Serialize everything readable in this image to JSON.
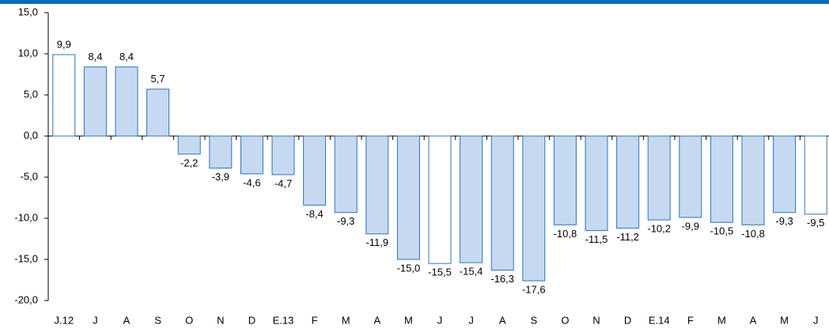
{
  "chart_data": {
    "type": "bar",
    "categories": [
      "J.12",
      "J",
      "A",
      "S",
      "O",
      "N",
      "D",
      "E.13",
      "F",
      "M",
      "A",
      "M",
      "J",
      "J",
      "A",
      "S",
      "O",
      "N",
      "D",
      "E.14",
      "F",
      "M",
      "A",
      "M",
      "J"
    ],
    "values": [
      9.9,
      8.4,
      8.4,
      5.7,
      -2.2,
      -3.9,
      -4.6,
      -4.7,
      -8.4,
      -9.3,
      -11.9,
      -15.0,
      -15.5,
      -15.4,
      -16.3,
      -17.6,
      -10.8,
      -11.5,
      -11.2,
      -10.2,
      -9.9,
      -10.5,
      -10.8,
      -9.3,
      -9.5
    ],
    "value_labels": [
      "9,9",
      "8,4",
      "8,4",
      "5,7",
      "-2,2",
      "-3,9",
      "-4,6",
      "-4,7",
      "-8,4",
      "-9,3",
      "-11,9",
      "-15,0",
      "-15,5",
      "-15,4",
      "-16,3",
      "-17,6",
      "-10,8",
      "-11,5",
      "-11,2",
      "-10,2",
      "-9,9",
      "-10,5",
      "-10,8",
      "-9,3",
      "-9,5"
    ],
    "colors": [
      "#ffffff",
      "#c6d9f1",
      "#c6d9f1",
      "#c6d9f1",
      "#c6d9f1",
      "#c6d9f1",
      "#c6d9f1",
      "#c6d9f1",
      "#c6d9f1",
      "#c6d9f1",
      "#c6d9f1",
      "#c6d9f1",
      "#ffffff",
      "#c6d9f1",
      "#c6d9f1",
      "#c6d9f1",
      "#c6d9f1",
      "#c6d9f1",
      "#c6d9f1",
      "#c6d9f1",
      "#c6d9f1",
      "#c6d9f1",
      "#c6d9f1",
      "#c6d9f1",
      "#ffffff"
    ],
    "edge_color": "#2e75b6",
    "ylim": [
      -20,
      15
    ],
    "yticks": [
      {
        "value": -20,
        "label": "-20,0"
      },
      {
        "value": -15,
        "label": "-15,0"
      },
      {
        "value": -10,
        "label": "-10,0"
      },
      {
        "value": -5,
        "label": "-5,0"
      },
      {
        "value": 0,
        "label": "0,0"
      },
      {
        "value": 5,
        "label": "5,0"
      },
      {
        "value": 10,
        "label": "10,0"
      },
      {
        "value": 15,
        "label": "15,0"
      }
    ]
  }
}
